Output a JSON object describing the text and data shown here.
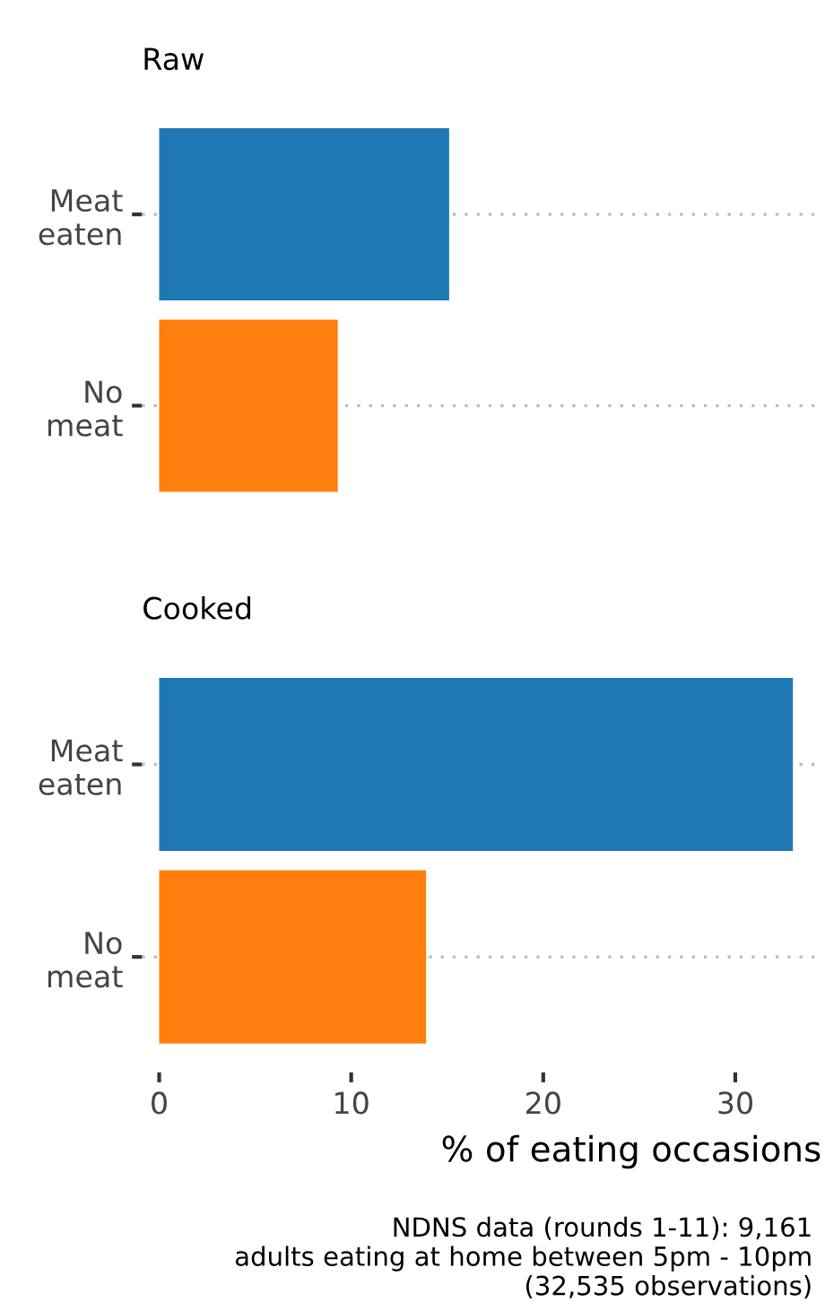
{
  "chart_data": [
    {
      "type": "bar",
      "orientation": "horizontal",
      "title": "Raw",
      "categories": [
        "Meat\neaten",
        "No\nmeat"
      ],
      "values": [
        15.1,
        9.3
      ],
      "colors": [
        "#1f77b4",
        "#ff7f0e"
      ],
      "xlim": [
        -0.9,
        34.5
      ],
      "xticks": [
        0,
        10,
        20,
        30
      ],
      "grid": "y",
      "tick_labels": "y"
    },
    {
      "type": "bar",
      "orientation": "horizontal",
      "title": "Cooked",
      "categories": [
        "Meat\neaten",
        "No\nmeat"
      ],
      "values": [
        33.0,
        13.9
      ],
      "colors": [
        "#1f77b4",
        "#ff7f0e"
      ],
      "xlim": [
        -0.9,
        34.5
      ],
      "xticks": [
        0,
        10,
        20,
        30
      ],
      "grid": "y",
      "xlabel": "% of eating occasions",
      "annotations": [
        "NDNS data (rounds 1-11): 9,161\nadults eating at home between 5pm - 10pm\n(32,535 observations)"
      ]
    }
  ]
}
